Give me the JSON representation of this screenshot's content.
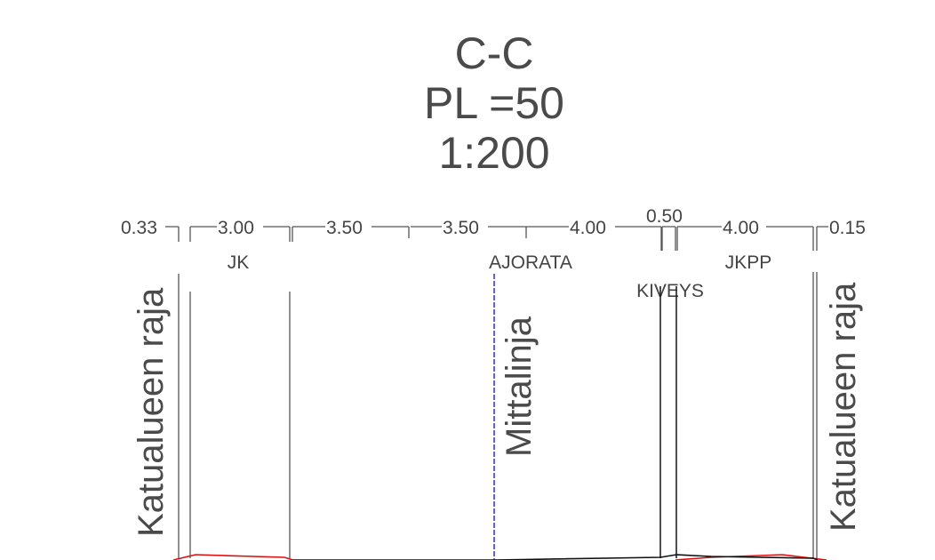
{
  "title": {
    "section": "C-C",
    "station": "PL =50",
    "scale": "1:200"
  },
  "dimensions": [
    "0.33",
    "3.00",
    "3.50",
    "3.50",
    "4.00",
    "0.50",
    "4.00",
    "0.15"
  ],
  "zones": {
    "jk": "JK",
    "ajorata": "AJORATA",
    "kiveys": "KIVEYS",
    "jkpp": "JKPP"
  },
  "vertical_labels": {
    "left_boundary": "Katualueen raja",
    "centerline": "Mittalinja",
    "right_boundary": "Katualueen raja"
  },
  "colors": {
    "centerline": "#2a2adf",
    "existing_ground": "#e01010",
    "lines": "#555555"
  }
}
